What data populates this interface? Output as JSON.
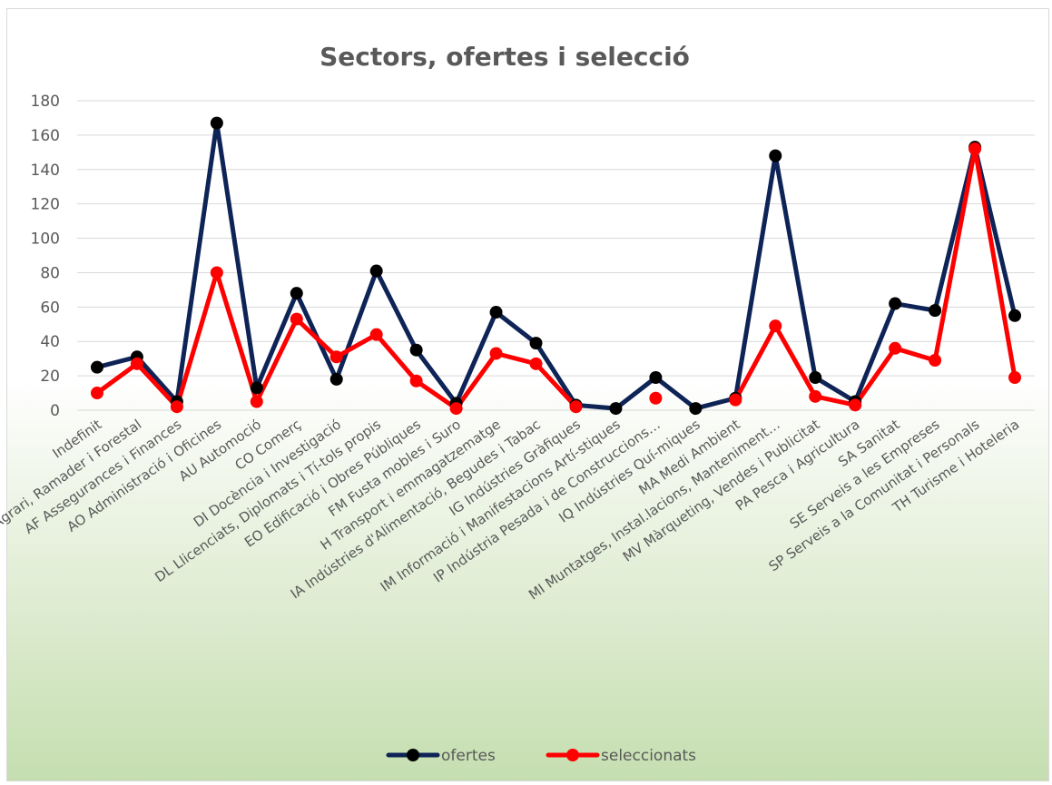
{
  "chart_data": {
    "type": "line",
    "title": "Sectors, ofertes i selecció",
    "xlabel": "",
    "ylabel": "",
    "ylim": [
      0,
      180
    ],
    "yticks": [
      0,
      20,
      40,
      60,
      80,
      100,
      120,
      140,
      160,
      180
    ],
    "grid": true,
    "legend_position": "bottom",
    "categories": [
      "Indefinit",
      "AA Agrari, Ramader i Forestal",
      "AF Assegurances i Finances",
      "AO Administració i Oficines",
      "AU Automoció",
      "CO Comerç",
      "DI Docència i Investigació",
      "DL Llicenciats, Diplomats i Tí-tols propis",
      "EO Edificació i Obres Públiques",
      "FM Fusta mobles i Suro",
      "H Transport i emmagatzematge",
      "IA Indústries d'Alimentació, Begudes i Tabac",
      "IG Indústries Gràfiques",
      "IM Informació i Manifestacions Artí-stiques",
      "IP Indústria Pesada i de Construccions…",
      "IQ Indústries Quí-miques",
      "MA Medi Ambient",
      "MI Muntatges, Instal.lacions, Manteniment…",
      "MV Màrqueting, Vendes i Publicitat",
      "PA Pesca i Agricultura",
      "SA Sanitat",
      "SE Serveis a les Empreses",
      "SP Serveis a la Comunitat i Personals",
      "TH Turisme i Hoteleria"
    ],
    "series": [
      {
        "name": "ofertes",
        "color": "#0e2356",
        "values": [
          25,
          31,
          5,
          167,
          13,
          68,
          18,
          81,
          35,
          4,
          57,
          39,
          3,
          1,
          19,
          1,
          7,
          148,
          19,
          5,
          62,
          58,
          153,
          55
        ]
      },
      {
        "name": "seleccionats",
        "color": "#ff0000",
        "values": [
          10,
          27,
          2,
          80,
          5,
          53,
          31,
          44,
          17,
          1,
          33,
          27,
          2,
          null,
          7,
          null,
          6,
          49,
          8,
          3,
          36,
          29,
          152,
          19
        ]
      }
    ]
  }
}
